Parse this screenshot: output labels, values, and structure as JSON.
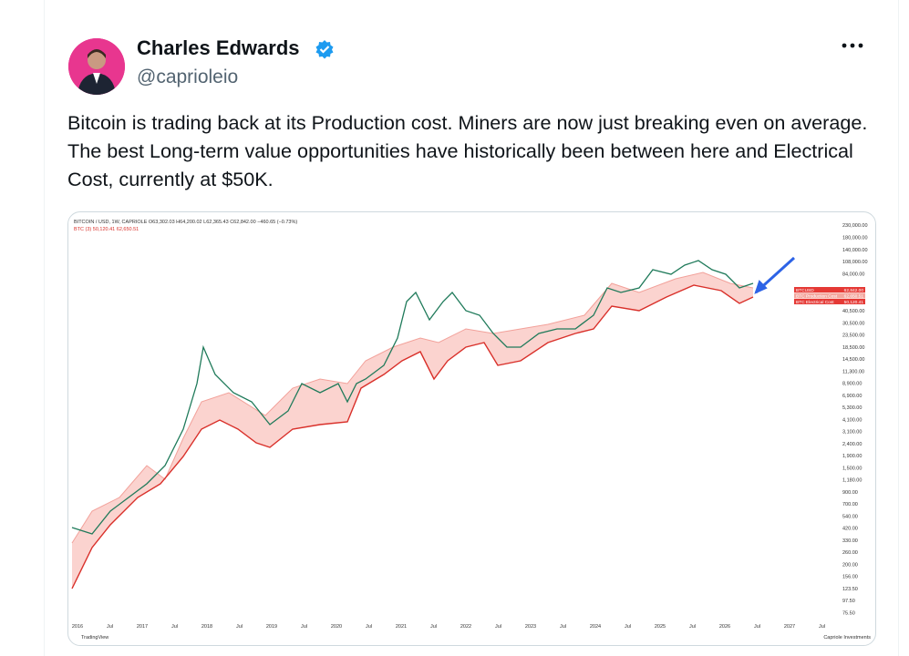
{
  "tweet": {
    "author": {
      "name": "Charles Edwards",
      "handle": "@caprioleio"
    },
    "text": "Bitcoin is trading back at its Production cost. Miners are now just breaking even on average. The best Long-term value opportunities have historically been between here and Electrical Cost, currently at $50K.",
    "image": {
      "header": "BITCOIN / USD, 1W, CAPRIOLE  O63,302.03  H64,200.02  L62,365.43  C62,842.00  −460.65 (−0.73%)",
      "legend": "BTC (3)  50,120.41  62,650.51",
      "price_axis": [
        "230,000.00",
        "180,000.00",
        "140,000.00",
        "108,000.00",
        "84,000.00",
        "40,500.00",
        "30,500.00",
        "23,500.00",
        "18,500.00",
        "14,500.00",
        "11,300.00",
        "8,900.00",
        "6,900.00",
        "5,300.00",
        "4,100.00",
        "3,100.00",
        "2,400.00",
        "1,900.00",
        "1,500.00",
        "1,180.00",
        "900.00",
        "700.00",
        "540.00",
        "420.00",
        "330.00",
        "260.00",
        "200.00",
        "156.00",
        "123.50",
        "97.50",
        "75.50"
      ],
      "time_axis": [
        "2016",
        "Jul",
        "2017",
        "Jul",
        "2018",
        "Jul",
        "2019",
        "Jul",
        "2020",
        "Jul",
        "2021",
        "Jul",
        "2022",
        "Jul",
        "2023",
        "Jul",
        "2024",
        "Jul",
        "2025",
        "Jul",
        "2026",
        "Jul",
        "2027",
        "Jul"
      ],
      "price_tags": [
        {
          "label": "BTCUSD",
          "value": "62,842.00"
        },
        {
          "label": "BTC Production Cost",
          "value": "62,650.51"
        },
        {
          "label": "BTC Electrical Cost",
          "value": "50,120.41"
        }
      ],
      "footer_left": "TradingView",
      "footer_right": "Capriole Investments"
    }
  }
}
